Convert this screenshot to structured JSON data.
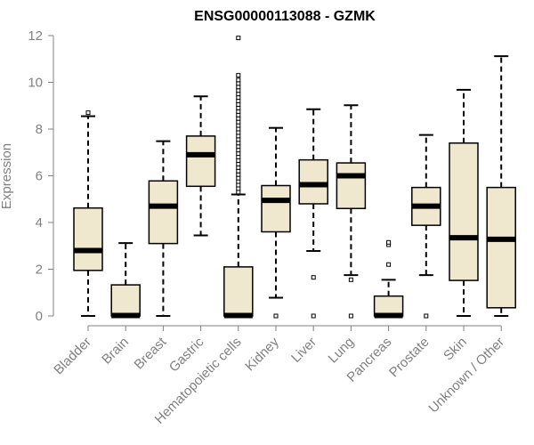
{
  "chart_data": {
    "type": "box",
    "title": "ENSG00000113088 - GZMK",
    "ylabel": "Expression",
    "xlabel": "",
    "ylim": [
      0,
      12
    ],
    "yticks": [
      0,
      2,
      4,
      6,
      8,
      10,
      12
    ],
    "categories": [
      "Bladder",
      "Brain",
      "Breast",
      "Gastric",
      "Hematopoietic cells",
      "Kidney",
      "Liver",
      "Lung",
      "Pancreas",
      "Prostate",
      "Skin",
      "Unknown / Other"
    ],
    "boxes": [
      {
        "category": "Bladder",
        "whisker_low": 0,
        "q1": 1.95,
        "median": 2.8,
        "q3": 4.62,
        "whisker_high": 8.55,
        "outliers": [
          8.7
        ]
      },
      {
        "category": "Brain",
        "whisker_low": 0,
        "q1": 0,
        "median": 0.02,
        "q3": 1.33,
        "whisker_high": 3.12,
        "outliers": []
      },
      {
        "category": "Breast",
        "whisker_low": 0,
        "q1": 3.1,
        "median": 4.7,
        "q3": 5.78,
        "whisker_high": 7.48,
        "outliers": []
      },
      {
        "category": "Gastric",
        "whisker_low": 3.45,
        "q1": 5.55,
        "median": 6.9,
        "q3": 7.7,
        "whisker_high": 9.4,
        "outliers": []
      },
      {
        "category": "Hematopoietic cells",
        "whisker_low": 0,
        "q1": 0,
        "median": 0.02,
        "q3": 2.1,
        "whisker_high": 5.2,
        "outliers": [
          5.3,
          5.45,
          5.6,
          5.75,
          5.9,
          6.05,
          6.2,
          6.35,
          6.5,
          6.65,
          6.8,
          6.95,
          7.1,
          7.25,
          7.4,
          7.55,
          7.7,
          7.85,
          8.0,
          8.15,
          8.3,
          8.45,
          8.6,
          8.75,
          8.9,
          9.05,
          9.2,
          9.35,
          9.5,
          9.65,
          9.8,
          9.95,
          10.1,
          10.3,
          11.9
        ]
      },
      {
        "category": "Kidney",
        "whisker_low": 0.78,
        "q1": 3.6,
        "median": 4.95,
        "q3": 5.58,
        "whisker_high": 8.05,
        "outliers": [
          0
        ]
      },
      {
        "category": "Liver",
        "whisker_low": 2.78,
        "q1": 4.8,
        "median": 5.62,
        "q3": 6.68,
        "whisker_high": 8.85,
        "outliers": [
          1.65,
          0
        ]
      },
      {
        "category": "Lung",
        "whisker_low": 1.75,
        "q1": 4.6,
        "median": 6.0,
        "q3": 6.55,
        "whisker_high": 9.02,
        "outliers": [
          1.55,
          0
        ]
      },
      {
        "category": "Pancreas",
        "whisker_low": 0,
        "q1": 0,
        "median": 0.02,
        "q3": 0.85,
        "whisker_high": 1.55,
        "outliers": [
          2.2,
          3.05,
          3.15
        ]
      },
      {
        "category": "Prostate",
        "whisker_low": 1.75,
        "q1": 3.88,
        "median": 4.7,
        "q3": 5.5,
        "whisker_high": 7.75,
        "outliers": [
          0
        ]
      },
      {
        "category": "Skin",
        "whisker_low": 0,
        "q1": 1.52,
        "median": 3.35,
        "q3": 7.4,
        "whisker_high": 9.68,
        "outliers": []
      },
      {
        "category": "Unknown / Other",
        "whisker_low": 0,
        "q1": 0.35,
        "median": 3.28,
        "q3": 5.5,
        "whisker_high": 11.12,
        "outliers": []
      }
    ],
    "colors": {
      "box_fill": "#efe8cf",
      "line": "#000000",
      "axis": "#808080",
      "tick_label": "#808080"
    },
    "grid": false,
    "legend": "none"
  }
}
